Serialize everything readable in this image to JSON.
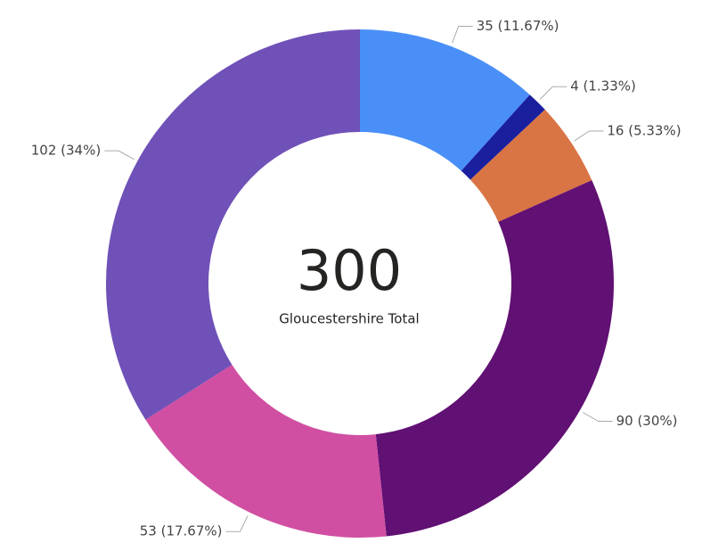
{
  "chart_data": {
    "type": "donut",
    "center_value": 300,
    "center_label": "Gloucestershire Total",
    "values": [
      35,
      4,
      16,
      90,
      53,
      102
    ],
    "value_labels": [
      "35 (11.67%)",
      "4 (1.33%)",
      "16 (5.33%)",
      "90 (30%)",
      "53 (17.67%)",
      "102 (34%)"
    ],
    "colors": [
      "#4a8ff8",
      "#1a1f9e",
      "#d97444",
      "#611073",
      "#d04fa2",
      "#6f51b8"
    ]
  }
}
